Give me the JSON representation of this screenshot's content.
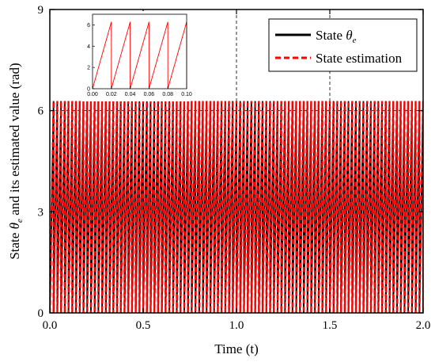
{
  "chart_data": [
    {
      "type": "line",
      "xlabel": "Time (t)",
      "ylabel": "and its estimated value  (rad)",
      "ylabel_prefix": "State",
      "ylabel_symbol": "θ",
      "ylabel_subscript": "e",
      "xlim": [
        0,
        2.0
      ],
      "ylim": [
        0,
        9
      ],
      "xticks": [
        "0.0",
        "0.5",
        "1.0",
        "1.5",
        "2.0"
      ],
      "yticks": [
        "0",
        "3",
        "6",
        "9"
      ],
      "grid": "dashed vertical at x = 1.0 and 1.5, dashed horizontal at y = 6",
      "legend_position": "top-right",
      "series": [
        {
          "name": "State",
          "name_symbol": "θ",
          "name_subscript": "e",
          "color": "#000000",
          "style": "solid",
          "waveform": "sawtooth",
          "period": 0.02,
          "min": 0,
          "max": 6.2832
        },
        {
          "name": "State estimation",
          "color": "#ff0000",
          "style": "dashed",
          "waveform": "sawtooth",
          "period": 0.02,
          "min": 0,
          "max": 6.2832
        }
      ]
    },
    {
      "type": "line",
      "inset": true,
      "xlim": [
        0,
        0.1
      ],
      "ylim": [
        0,
        7
      ],
      "xticks": [
        "0.00",
        "0.02",
        "0.04",
        "0.06",
        "0.08",
        "0.10"
      ],
      "yticks": [
        "0",
        "2",
        "4",
        "6"
      ],
      "series": [
        {
          "color": "#ff0000",
          "style": "solid",
          "waveform": "sawtooth",
          "period": 0.02,
          "min": 0,
          "max": 6.2832
        }
      ]
    }
  ]
}
